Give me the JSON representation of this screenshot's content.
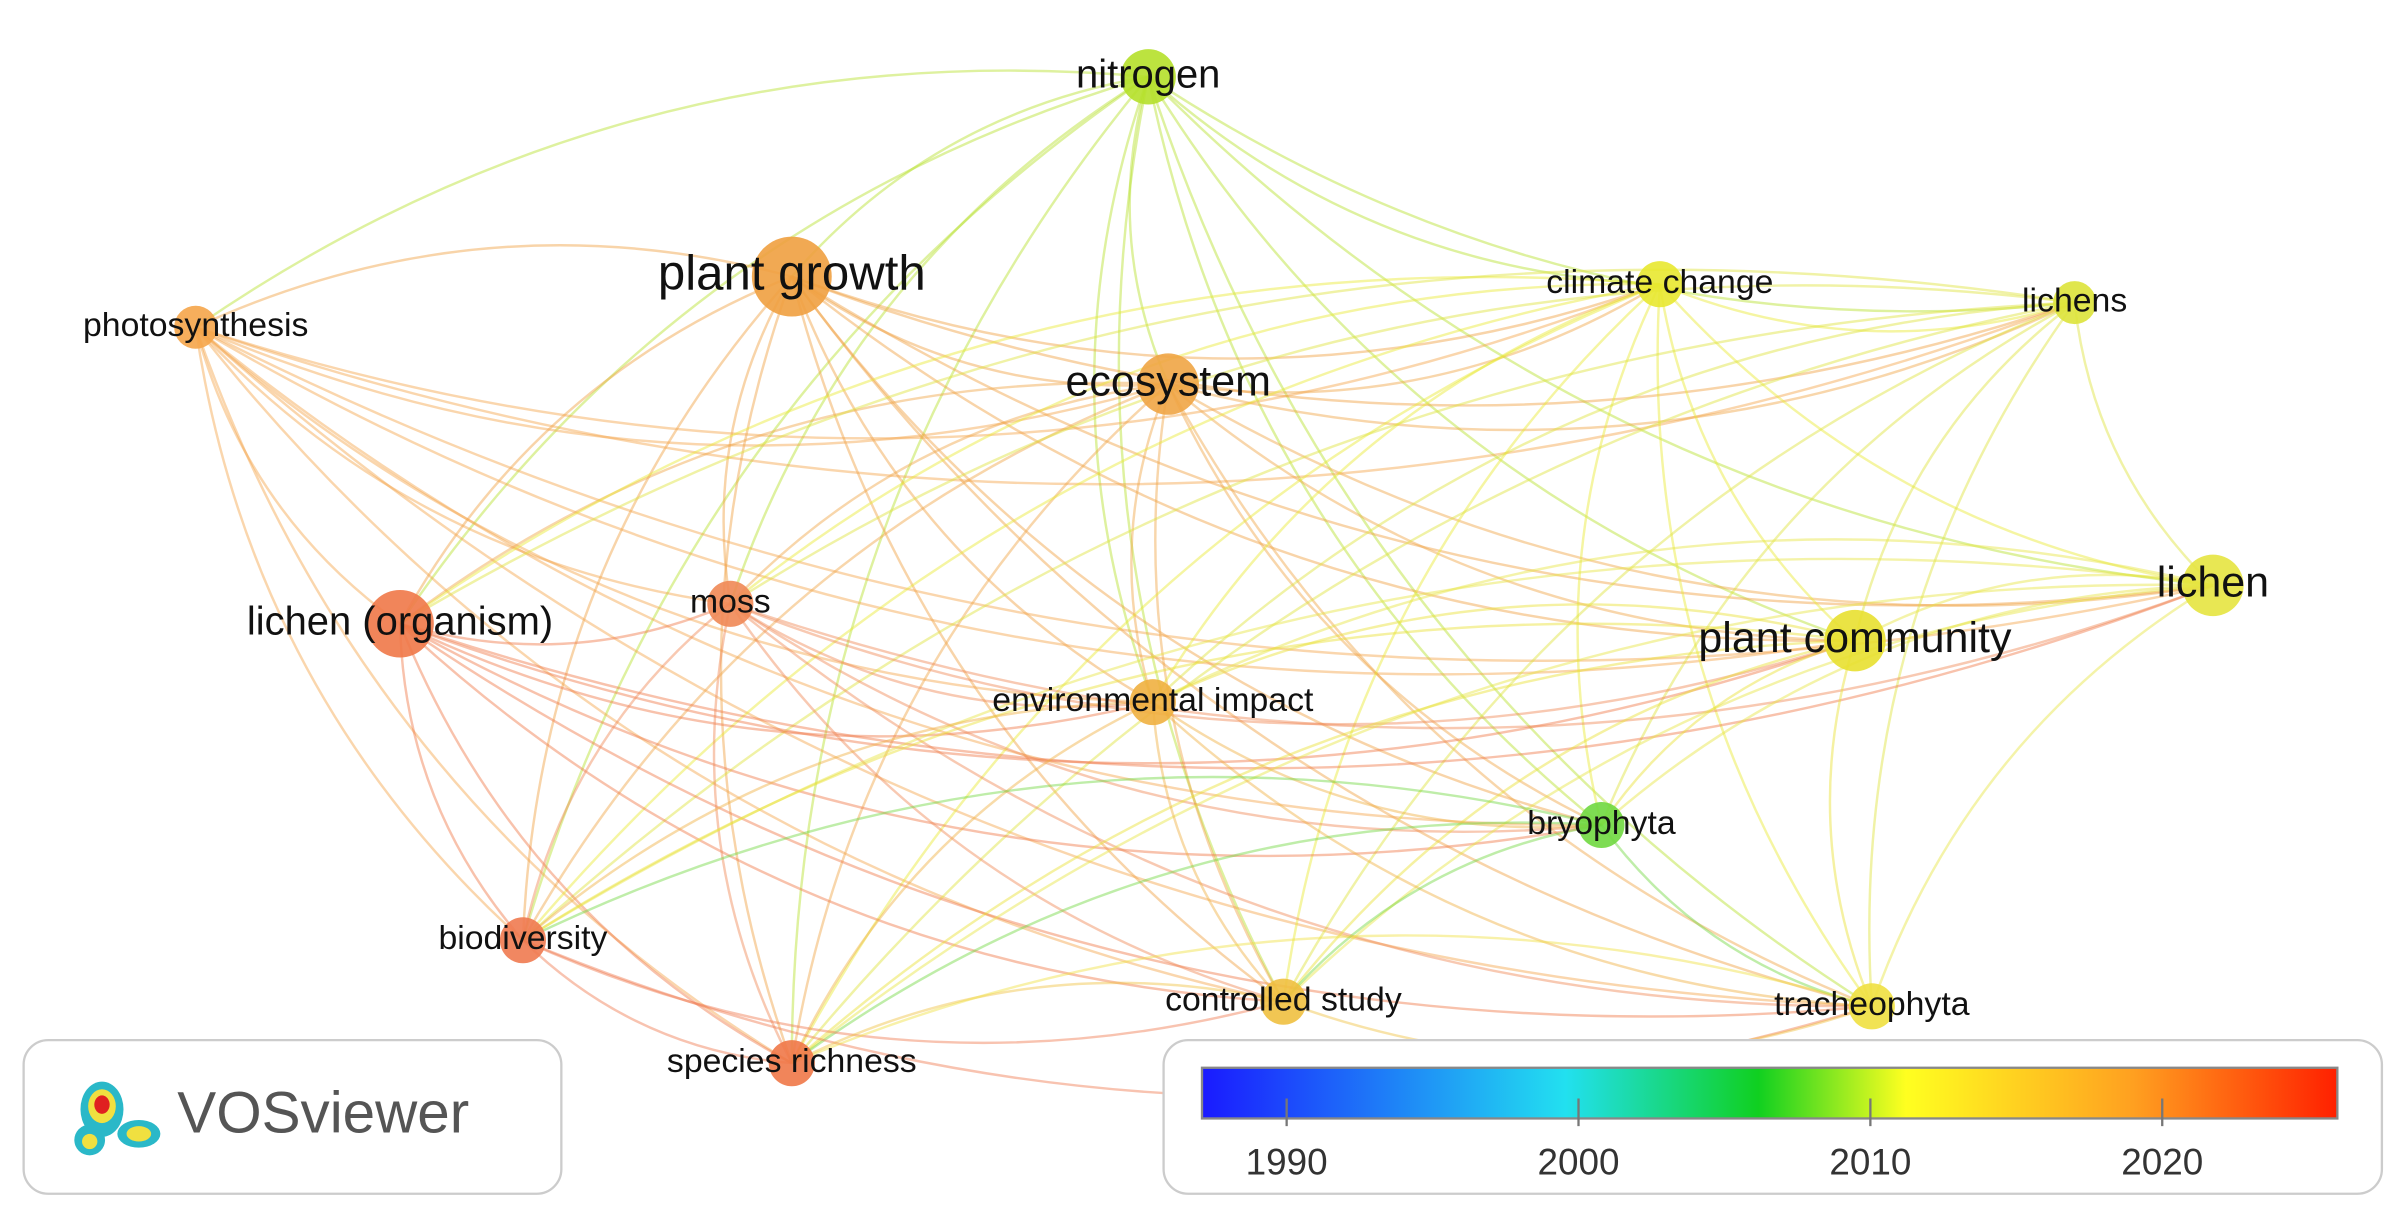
{
  "nodes": [
    {
      "label": "nitrogen"
    },
    {
      "label": "plant growth"
    },
    {
      "label": "photosynthesis"
    },
    {
      "label": "ecosystem"
    },
    {
      "label": "climate change"
    },
    {
      "label": "lichens"
    },
    {
      "label": "lichen (organism)"
    },
    {
      "label": "moss"
    },
    {
      "label": "lichen"
    },
    {
      "label": "plant community"
    },
    {
      "label": "environmental impact"
    },
    {
      "label": "bryophyta"
    },
    {
      "label": "biodiversity"
    },
    {
      "label": "controlled study"
    },
    {
      "label": "tracheophyta"
    },
    {
      "label": "species richness"
    }
  ],
  "logo": {
    "text": "VOSviewer"
  },
  "colorbar": {
    "lim": [
      1987.1,
      2026
    ],
    "ticks": [
      1990,
      2000,
      2010,
      2020
    ]
  }
}
